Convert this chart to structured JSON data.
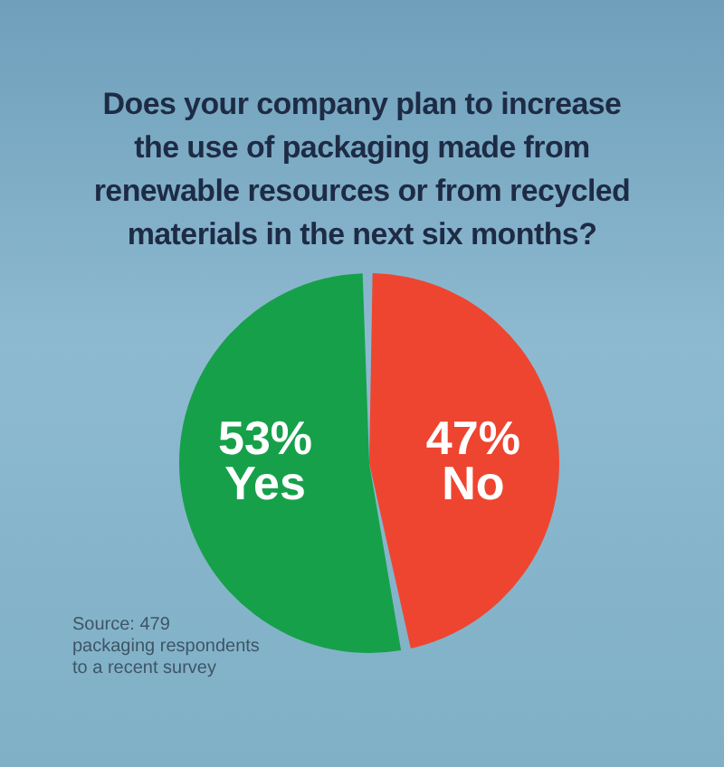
{
  "chart_data": {
    "type": "pie",
    "title": "Does your company plan to increase the use of packaging made from renewable resources or from recycled materials in the next six months?",
    "categories": [
      "Yes",
      "No"
    ],
    "values": [
      53,
      47
    ],
    "colors": [
      "#17a04a",
      "#ee4530"
    ],
    "value_labels": [
      "53%",
      "47%"
    ],
    "legend": false,
    "annotations": [
      "Source: 479\npackaging respondents\nto a recent survey"
    ]
  }
}
